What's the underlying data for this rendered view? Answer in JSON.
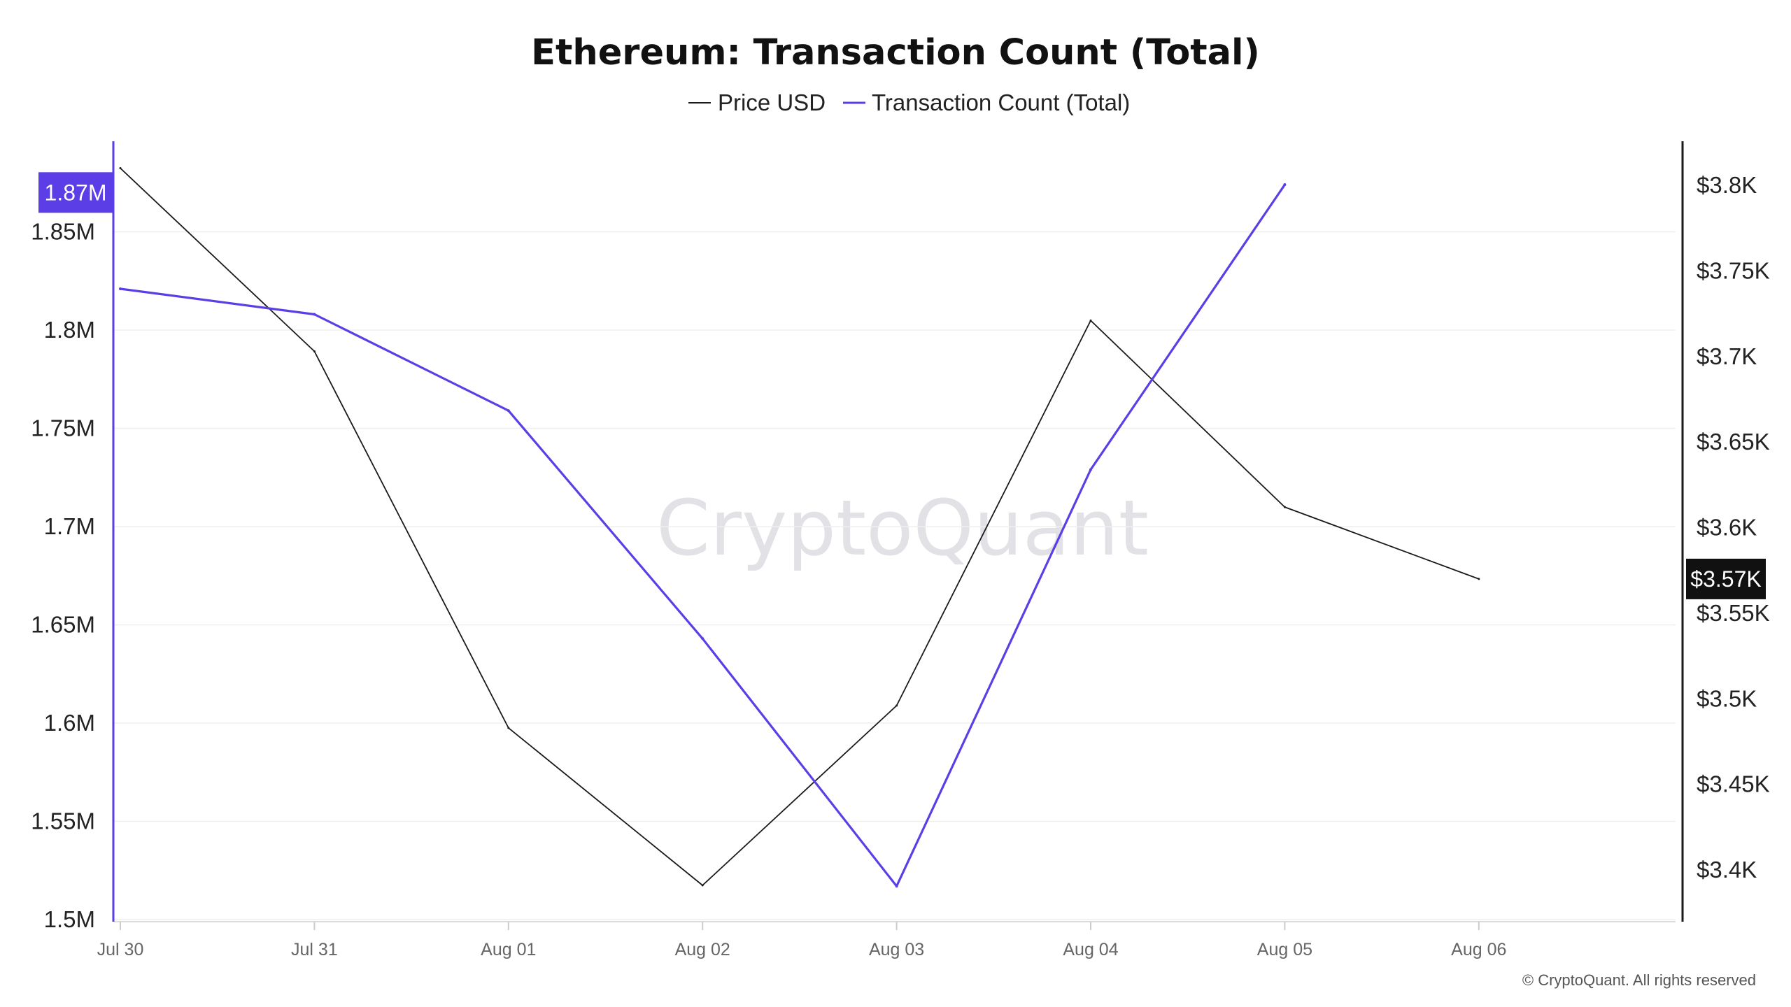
{
  "chart_data": {
    "type": "line",
    "title": "Ethereum: Transaction Count (Total)",
    "categories": [
      "Jul 30",
      "Jul 31",
      "Aug 01",
      "Aug 02",
      "Aug 03",
      "Aug 04",
      "Aug 05",
      "Aug 06"
    ],
    "series": [
      {
        "name": "Price USD",
        "axis": "right",
        "color": "#1a1a1a",
        "values": [
          3810,
          3703,
          3483,
          3391,
          3496,
          3721,
          3612,
          3570
        ]
      },
      {
        "name": "Transaction Count (Total)",
        "axis": "left",
        "color": "#5b3ee6",
        "values": [
          1821000,
          1808000,
          1759000,
          1643000,
          1517000,
          1729000,
          1874000,
          null
        ]
      }
    ],
    "left_axis": {
      "ticks": [
        "1.5M",
        "1.55M",
        "1.6M",
        "1.65M",
        "1.7M",
        "1.75M",
        "1.8M",
        "1.85M"
      ],
      "tick_values": [
        1500000,
        1550000,
        1600000,
        1650000,
        1700000,
        1750000,
        1800000,
        1850000
      ],
      "range": [
        1500000,
        1890000
      ],
      "current_label": "1.87M",
      "current_value": 1870000,
      "color": "#5b3ee6"
    },
    "right_axis": {
      "ticks": [
        "$3.4K",
        "$3.45K",
        "$3.5K",
        "$3.55K",
        "$3.6K",
        "$3.65K",
        "$3.7K",
        "$3.75K",
        "$3.8K"
      ],
      "tick_values": [
        3400,
        3450,
        3500,
        3550,
        3600,
        3650,
        3700,
        3750,
        3800
      ],
      "range": [
        3400,
        3800
      ],
      "current_label": "$3.57K",
      "current_value": 3570,
      "color": "#1a1a1a"
    },
    "legend_position": "top-center",
    "grid": true,
    "watermark": "CryptoQuant",
    "copyright": "© CryptoQuant. All rights reserved"
  }
}
